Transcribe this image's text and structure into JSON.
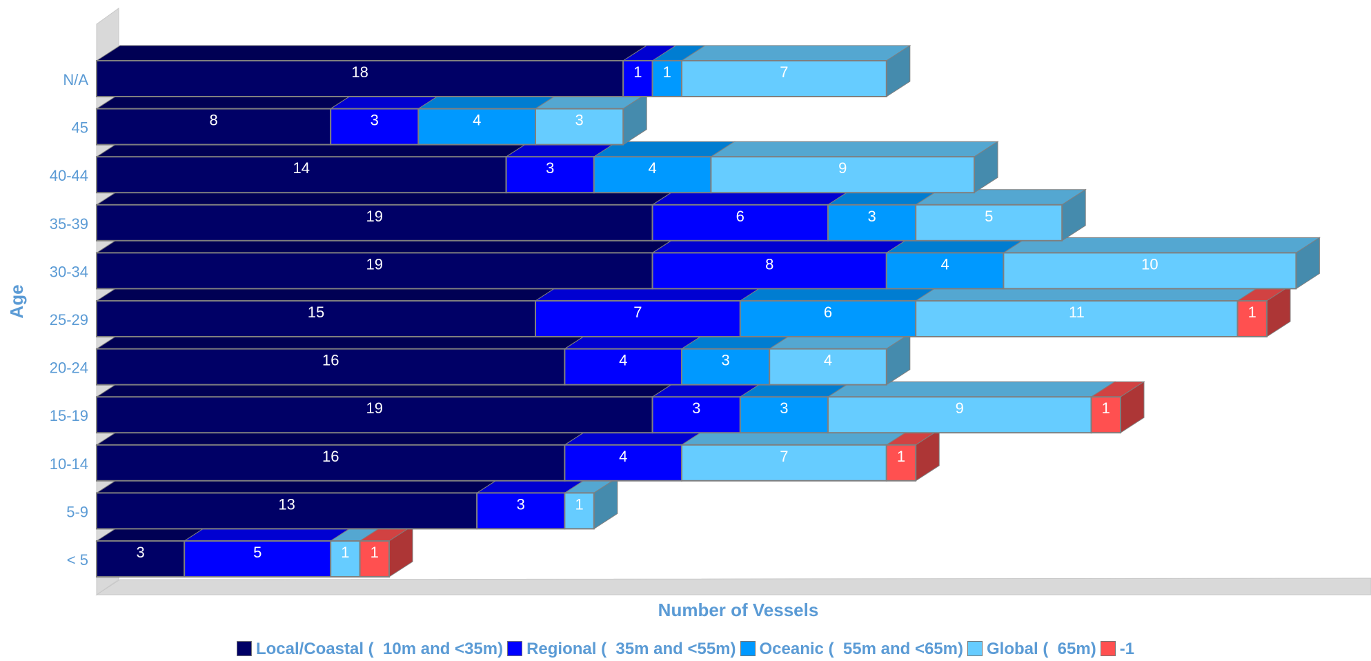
{
  "chart_data": {
    "type": "bar",
    "orientation": "horizontal",
    "stacked": true,
    "three_d": true,
    "title": "",
    "xlabel": "Number of Vessels",
    "ylabel": "Age",
    "categories": [
      "< 5",
      "5-9",
      "10-14",
      "15-19",
      "20-24",
      "25-29",
      "30-34",
      "35-39",
      "40-44",
      "45",
      "N/A"
    ],
    "series": [
      {
        "name": "Local/Coastal (  10m and <35m)",
        "color": "#000066",
        "values": [
          3,
          13,
          16,
          19,
          16,
          15,
          19,
          19,
          14,
          8,
          18
        ]
      },
      {
        "name": "Regional (  35m and <55m)",
        "color": "#0000FF",
        "values": [
          5,
          3,
          4,
          3,
          4,
          7,
          8,
          6,
          3,
          3,
          1
        ]
      },
      {
        "name": "Oceanic (  55m and <65m)",
        "color": "#0099FF",
        "values": [
          null,
          null,
          null,
          3,
          3,
          6,
          4,
          3,
          4,
          4,
          1
        ]
      },
      {
        "name": "Global (  65m)",
        "color": "#66CCFF",
        "values": [
          1,
          1,
          7,
          9,
          4,
          11,
          10,
          5,
          9,
          3,
          7
        ]
      },
      {
        "name": "-1",
        "color": "#FF5050",
        "values": [
          1,
          null,
          1,
          1,
          null,
          1,
          null,
          null,
          null,
          null,
          null
        ]
      }
    ],
    "xlim": [
      0,
      43
    ],
    "grid": false,
    "legend_position": "bottom",
    "colors": {
      "axis_text": "#5B9BD5",
      "wall": "#D9D9D9"
    }
  }
}
